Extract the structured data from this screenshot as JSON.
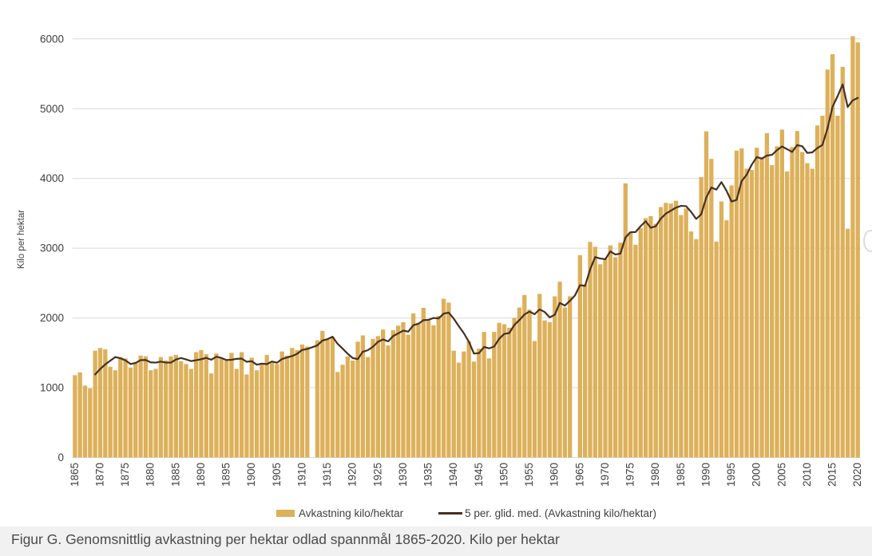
{
  "page": {
    "caption": "Figur G. Genomsnittlig avkastning per hektar odlad spannmål 1865-2020. Kilo per hektar"
  },
  "chart_data": {
    "type": "bar",
    "title": "",
    "xlabel": "",
    "ylabel": "Kilo per hektar",
    "ylim": [
      0,
      6000
    ],
    "yticks": [
      0,
      1000,
      2000,
      3000,
      4000,
      5000,
      6000
    ],
    "grid": true,
    "legend_position": "bottom",
    "x_tick_interval": 5,
    "year_start": 1865,
    "year_end": 2020,
    "missing_years": [
      1912,
      1964
    ],
    "series": [
      {
        "name": "Avkastning kilo/hektar",
        "type": "bar",
        "color": "#ddb05a"
      },
      {
        "name": "5 per. glid. med. (Avkastning kilo/hektar)",
        "type": "moving_average",
        "window": 5,
        "color": "#463021"
      }
    ],
    "values": [
      1180,
      1220,
      1030,
      990,
      1530,
      1570,
      1550,
      1300,
      1250,
      1440,
      1420,
      1290,
      1370,
      1460,
      1450,
      1250,
      1270,
      1440,
      1390,
      1450,
      1470,
      1380,
      1340,
      1270,
      1510,
      1540,
      1480,
      1205,
      1490,
      1420,
      1390,
      1500,
      1270,
      1510,
      1190,
      1430,
      1250,
      1350,
      1470,
      1380,
      1340,
      1520,
      1460,
      1570,
      1540,
      1620,
      1590,
      null,
      1680,
      1815,
      1700,
      1730,
      1225,
      1330,
      1450,
      1390,
      1660,
      1750,
      1440,
      1700,
      1740,
      1835,
      1605,
      1825,
      1890,
      1940,
      1760,
      2065,
      1930,
      2145,
      1965,
      1895,
      2030,
      2275,
      2220,
      1530,
      1360,
      1520,
      1665,
      1375,
      1560,
      1800,
      1420,
      1800,
      1930,
      1910,
      1860,
      2000,
      2150,
      2330,
      2120,
      1670,
      2345,
      1965,
      1940,
      2310,
      2520,
      2150,
      2310,
      null,
      2900,
      2480,
      3090,
      3020,
      2770,
      2850,
      3040,
      2870,
      3080,
      3930,
      3230,
      3050,
      3290,
      3430,
      3460,
      3350,
      3590,
      3650,
      3640,
      3680,
      3475,
      3570,
      3240,
      3130,
      4020,
      4675,
      4280,
      3095,
      3670,
      3400,
      3900,
      4400,
      4430,
      4140,
      4120,
      4440,
      4290,
      4650,
      4190,
      4460,
      4700,
      4100,
      4450,
      4680,
      4380,
      4220,
      4140,
      4760,
      4900,
      5560,
      5780,
      4900,
      5600,
      3280,
      6040,
      5950
    ]
  }
}
